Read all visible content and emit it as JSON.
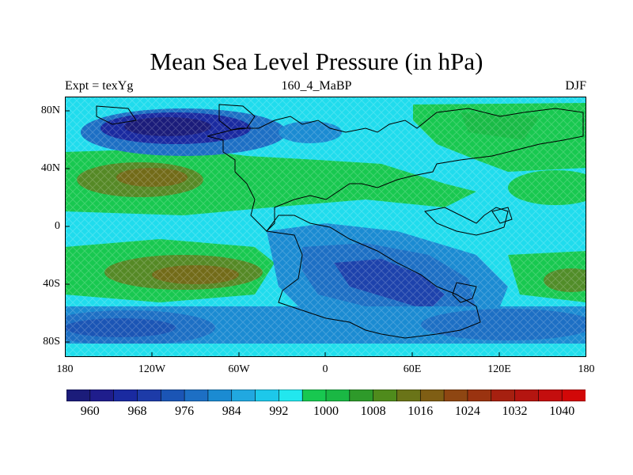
{
  "title": "Mean Sea Level Pressure (in hPa)",
  "subtitle_left": "Expt = texYg",
  "subtitle_center": "160_4_MaBP",
  "subtitle_right": "DJF",
  "axes": {
    "lat_ticks": [
      "80N",
      "40N",
      "0",
      "40S",
      "80S"
    ],
    "lon_ticks": [
      "180",
      "120W",
      "60W",
      "0",
      "60E",
      "120E",
      "180"
    ]
  },
  "colorbar": {
    "labels": [
      "960",
      "968",
      "976",
      "984",
      "992",
      "1000",
      "1008",
      "1016",
      "1024",
      "1032",
      "1040"
    ],
    "colors": [
      "#1b1c7a",
      "#1f1d8c",
      "#1a2aa0",
      "#1d3ba8",
      "#1b55b5",
      "#1d6fc4",
      "#1b8bd2",
      "#21a8e0",
      "#1dc8ea",
      "#22e7ee",
      "#18c850",
      "#1ab844",
      "#2e9a2a",
      "#4f8b1c",
      "#6a7418",
      "#7f5e14",
      "#8e4612",
      "#9a3310",
      "#a62010",
      "#b41510",
      "#c40e0e",
      "#d20808"
    ],
    "data_colors": {
      "deep_low": "#1b1c7a",
      "low": "#1d6fc4",
      "mid_low": "#1b8bd2",
      "mid": "#22e7ee",
      "high": "#18c850",
      "higher": "#6a7418",
      "highest": "#7f5e14"
    }
  }
}
